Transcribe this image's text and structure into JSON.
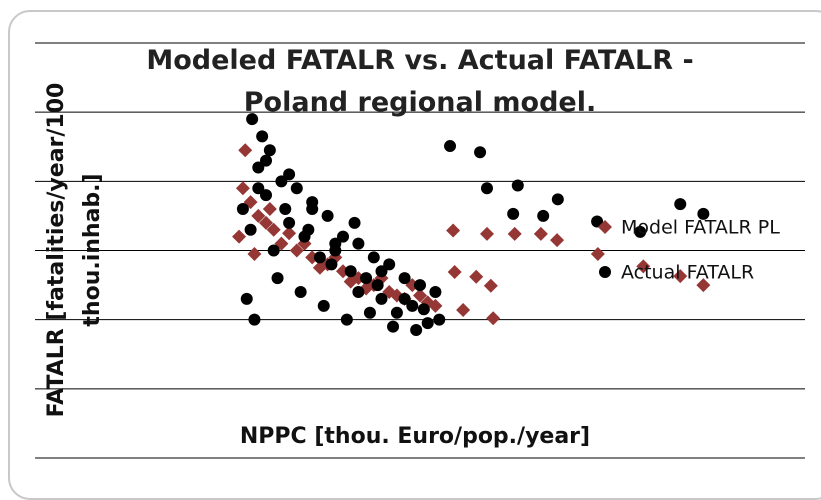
{
  "chart_data": {
    "type": "scatter",
    "title": "Modeled FATALR vs. Actual FATALR - Poland regional model.",
    "x_label": "NPPC [thou. Euro/pop./year]",
    "y_label": "FATALR [fatalities/year/100 thou.inhab.]",
    "xlim": [
      0,
      10
    ],
    "ylim": [
      0,
      6
    ],
    "yticks": [
      0,
      1,
      2,
      3,
      4,
      5,
      6
    ],
    "grid": true,
    "tick_labels": false,
    "legend": "right",
    "series": [
      {
        "name": "Model FATALR PL",
        "color": "#953735",
        "marker": "diamond",
        "x": [
          2.73,
          2.7,
          2.8,
          2.9,
          3.0,
          3.1,
          3.2,
          3.4,
          3.6,
          3.8,
          4.0,
          4.2,
          4.4,
          4.6,
          4.8,
          5.0,
          5.2,
          2.65,
          2.85,
          3.05,
          3.3,
          3.5,
          3.7,
          3.9,
          4.1,
          4.3,
          4.5,
          4.7,
          4.9,
          5.1,
          5.43,
          5.87,
          6.23,
          6.57,
          6.78,
          7.31,
          7.9,
          8.38,
          8.68,
          5.73,
          5.92,
          5.56,
          5.95,
          5.45
        ],
        "values": [
          4.45,
          3.9,
          3.7,
          3.5,
          3.4,
          3.3,
          3.1,
          3.0,
          2.9,
          2.8,
          2.7,
          2.6,
          2.5,
          2.4,
          2.3,
          2.35,
          2.2,
          3.2,
          2.95,
          3.6,
          3.25,
          3.1,
          2.75,
          2.9,
          2.55,
          2.45,
          2.6,
          2.35,
          2.5,
          2.25,
          3.29,
          3.24,
          3.24,
          3.24,
          3.15,
          2.95,
          2.77,
          2.63,
          2.5,
          2.62,
          2.49,
          2.14,
          2.02,
          2.69
        ]
      },
      {
        "name": "Actual FATALR",
        "color": "#000000",
        "marker": "circle",
        "x": [
          2.82,
          2.95,
          3.05,
          2.9,
          3.2,
          3.4,
          3.6,
          3.8,
          4.0,
          4.2,
          4.4,
          4.6,
          4.8,
          5.0,
          5.2,
          2.7,
          2.8,
          3.0,
          3.1,
          3.3,
          3.5,
          3.7,
          3.9,
          4.1,
          4.3,
          4.5,
          4.7,
          4.9,
          5.1,
          2.75,
          2.85,
          3.15,
          3.45,
          3.75,
          4.05,
          4.35,
          4.65,
          4.95,
          3.25,
          3.55,
          3.85,
          4.15,
          4.45,
          2.9,
          3.0,
          3.3,
          3.6,
          3.9,
          4.2,
          4.5,
          4.8,
          5.05,
          5.25,
          5.39,
          5.78,
          5.87,
          6.27,
          6.79,
          6.6,
          6.21,
          7.3,
          7.86,
          8.38,
          8.68
        ],
        "values": [
          4.9,
          4.65,
          4.45,
          4.2,
          4.0,
          3.9,
          3.7,
          3.5,
          3.2,
          3.1,
          2.9,
          2.8,
          2.6,
          2.5,
          2.4,
          3.6,
          3.3,
          3.8,
          3.0,
          3.4,
          3.2,
          2.9,
          3.0,
          2.7,
          2.6,
          2.3,
          2.1,
          2.2,
          1.95,
          2.3,
          2.0,
          2.6,
          2.4,
          2.2,
          2.0,
          2.1,
          1.9,
          1.85,
          3.6,
          3.3,
          2.8,
          3.4,
          2.5,
          3.9,
          4.3,
          4.1,
          3.6,
          3.1,
          2.4,
          2.7,
          2.3,
          2.15,
          2.0,
          4.51,
          4.42,
          3.9,
          3.94,
          3.74,
          3.5,
          3.53,
          3.42,
          3.27,
          3.67,
          3.53
        ]
      }
    ]
  }
}
